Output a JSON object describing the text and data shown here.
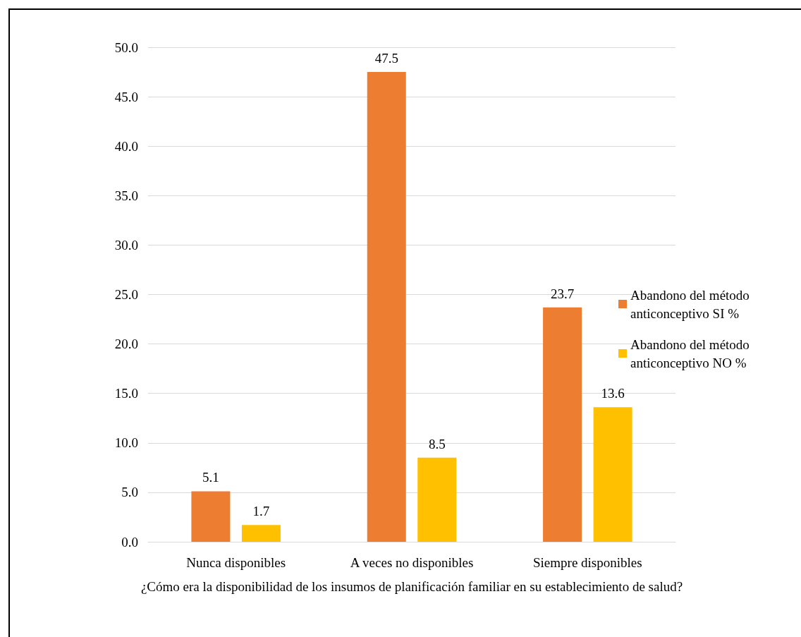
{
  "chart_data": {
    "type": "bar",
    "xlabel": "¿Cómo era la disponibilidad de los insumos de planificación familiar en su establecimiento de salud?",
    "categories": [
      "Nunca disponibles",
      "A veces no disponibles",
      "Siempre disponibles"
    ],
    "series": [
      {
        "name": "Abandono del método anticonceptivo SI %",
        "color": "#ed7d31",
        "values": [
          5.1,
          47.5,
          23.7
        ]
      },
      {
        "name": "Abandono del método anticonceptivo NO %",
        "color": "#ffc000",
        "values": [
          1.7,
          8.5,
          13.6
        ]
      }
    ],
    "ylim": [
      0,
      50
    ],
    "yticks": [
      {
        "value": 0,
        "label": "0.0"
      },
      {
        "value": 5,
        "label": "5.0"
      },
      {
        "value": 10,
        "label": "10.0"
      },
      {
        "value": 15,
        "label": "15.0"
      },
      {
        "value": 20,
        "label": "20.0"
      },
      {
        "value": 25,
        "label": "25.0"
      },
      {
        "value": 30,
        "label": "30.0"
      },
      {
        "value": 35,
        "label": "35.0"
      },
      {
        "value": 40,
        "label": "40.0"
      },
      {
        "value": 45,
        "label": "45.0"
      },
      {
        "value": 50,
        "label": "50.0"
      }
    ],
    "grid": "y",
    "legend": "right",
    "data_labels": true
  }
}
